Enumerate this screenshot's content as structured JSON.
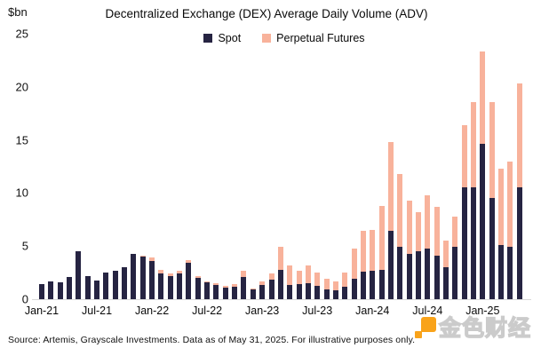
{
  "footer": {
    "source": "Source: Artemis, Grayscale Investments. Data as of May 31, 2025. For illustrative purposes only."
  },
  "watermark": {
    "text": "金色财经",
    "accent_color": "#f9a31a"
  },
  "colors": {
    "spot": "#262442",
    "perpetual_futures": "#f8b29b",
    "baseline": "#d8d8d8",
    "text": "#0a0a0a"
  },
  "chart_data": {
    "type": "bar",
    "stacked": true,
    "title": "Decentralized Exchange (DEX) Average Daily Volume (ADV)",
    "unit": "$bn",
    "ylabel": "$bn",
    "xlabel": "",
    "ylim": [
      0,
      25
    ],
    "y_ticks": [
      0,
      5,
      10,
      15,
      20,
      25
    ],
    "grid": false,
    "legend_position": "top-center",
    "x": [
      "Jan-21",
      "Feb-21",
      "Mar-21",
      "Apr-21",
      "May-21",
      "Jun-21",
      "Jul-21",
      "Aug-21",
      "Sep-21",
      "Oct-21",
      "Nov-21",
      "Dec-21",
      "Jan-22",
      "Feb-22",
      "Mar-22",
      "Apr-22",
      "May-22",
      "Jun-22",
      "Jul-22",
      "Aug-22",
      "Sep-22",
      "Oct-22",
      "Nov-22",
      "Dec-22",
      "Jan-23",
      "Feb-23",
      "Mar-23",
      "Apr-23",
      "May-23",
      "Jun-23",
      "Jul-23",
      "Aug-23",
      "Sep-23",
      "Oct-23",
      "Nov-23",
      "Dec-23",
      "Jan-24",
      "Feb-24",
      "Mar-24",
      "Apr-24",
      "May-24",
      "Jun-24",
      "Jul-24",
      "Aug-24",
      "Sep-24",
      "Oct-24",
      "Nov-24",
      "Dec-24",
      "Jan-25",
      "Feb-25",
      "Mar-25",
      "Apr-25",
      "May-25"
    ],
    "x_ticks": [
      {
        "index": 0,
        "label": "Jan-21"
      },
      {
        "index": 6,
        "label": "Jul-21"
      },
      {
        "index": 12,
        "label": "Jan-22"
      },
      {
        "index": 18,
        "label": "Jul-22"
      },
      {
        "index": 24,
        "label": "Jan-23"
      },
      {
        "index": 30,
        "label": "Jul-23"
      },
      {
        "index": 36,
        "label": "Jan-24"
      },
      {
        "index": 42,
        "label": "Jul-24"
      },
      {
        "index": 48,
        "label": "Jan-25"
      }
    ],
    "series": [
      {
        "name": "Spot",
        "color": "#262442",
        "values": [
          1.4,
          1.7,
          1.6,
          2.1,
          4.5,
          2.2,
          1.75,
          2.5,
          2.65,
          3.0,
          4.3,
          4.0,
          3.6,
          2.45,
          2.2,
          2.4,
          3.4,
          2.0,
          1.55,
          1.3,
          1.1,
          1.2,
          2.05,
          0.9,
          1.35,
          1.85,
          2.75,
          1.3,
          1.4,
          1.5,
          1.25,
          0.95,
          0.8,
          1.15,
          1.9,
          2.6,
          2.65,
          2.8,
          6.4,
          4.9,
          4.25,
          4.5,
          4.75,
          4.1,
          3.0,
          4.95,
          10.5,
          10.5,
          14.6,
          9.5,
          5.1,
          4.95,
          10.5
        ]
      },
      {
        "name": "Perpetual Futures",
        "color": "#f8b29b",
        "values": [
          0,
          0,
          0,
          0,
          0,
          0,
          0,
          0,
          0,
          0,
          0,
          0.1,
          0.3,
          0.3,
          0.25,
          0.25,
          0.3,
          0.2,
          0.15,
          0.2,
          0.15,
          0.25,
          0.6,
          0.1,
          0.3,
          0.55,
          2.15,
          1.9,
          1.3,
          1.65,
          1.25,
          1.0,
          0.85,
          1.4,
          2.9,
          3.8,
          3.85,
          6.0,
          8.4,
          6.9,
          5.05,
          3.7,
          5.05,
          4.6,
          2.5,
          2.85,
          5.9,
          8.1,
          8.7,
          9.1,
          7.2,
          8.05,
          9.8
        ]
      }
    ]
  }
}
